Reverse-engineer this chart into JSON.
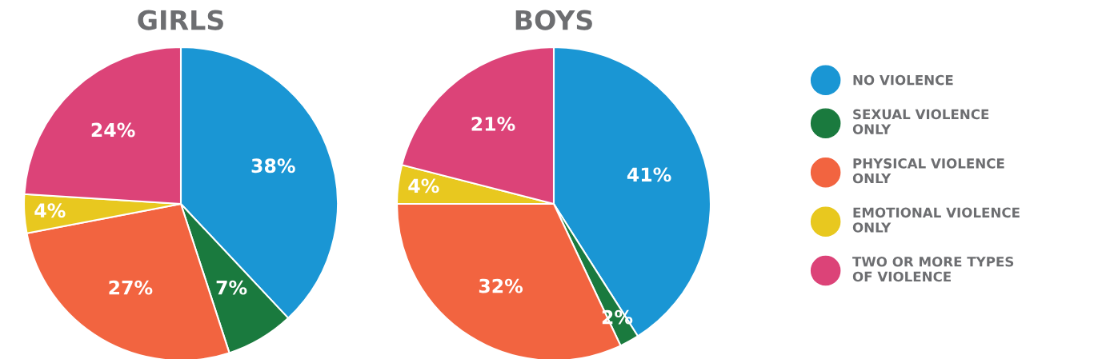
{
  "chart_data": [
    {
      "type": "pie",
      "title": "GIRLS",
      "categories": [
        "NO VIOLENCE",
        "SEXUAL VIOLENCE\nONLY",
        "PHYSICAL VIOLENCE\nONLY",
        "EMOTIONAL VIOLENCE\nONLY",
        "TWO OR MORE TYPES\nOF VIOLENCE"
      ],
      "values": [
        38,
        7,
        27,
        4,
        24
      ],
      "value_labels": [
        "38%",
        "7%",
        "27%",
        "4%",
        "24%"
      ],
      "colors": [
        "#1a96d4",
        "#1a7a3e",
        "#f26440",
        "#e8c81f",
        "#dc4378"
      ],
      "legend": "right"
    },
    {
      "type": "pie",
      "title": "BOYS",
      "categories": [
        null,
        null,
        null,
        null,
        null
      ],
      "values": [
        41,
        2,
        32,
        4,
        21
      ],
      "value_labels": [
        "41%",
        "2%",
        "32%",
        "4%",
        "21%"
      ],
      "colors": [
        "#1a96d4",
        "#1a7a3e",
        "#f26440",
        "#e8c81f",
        "#dc4378"
      ]
    }
  ]
}
